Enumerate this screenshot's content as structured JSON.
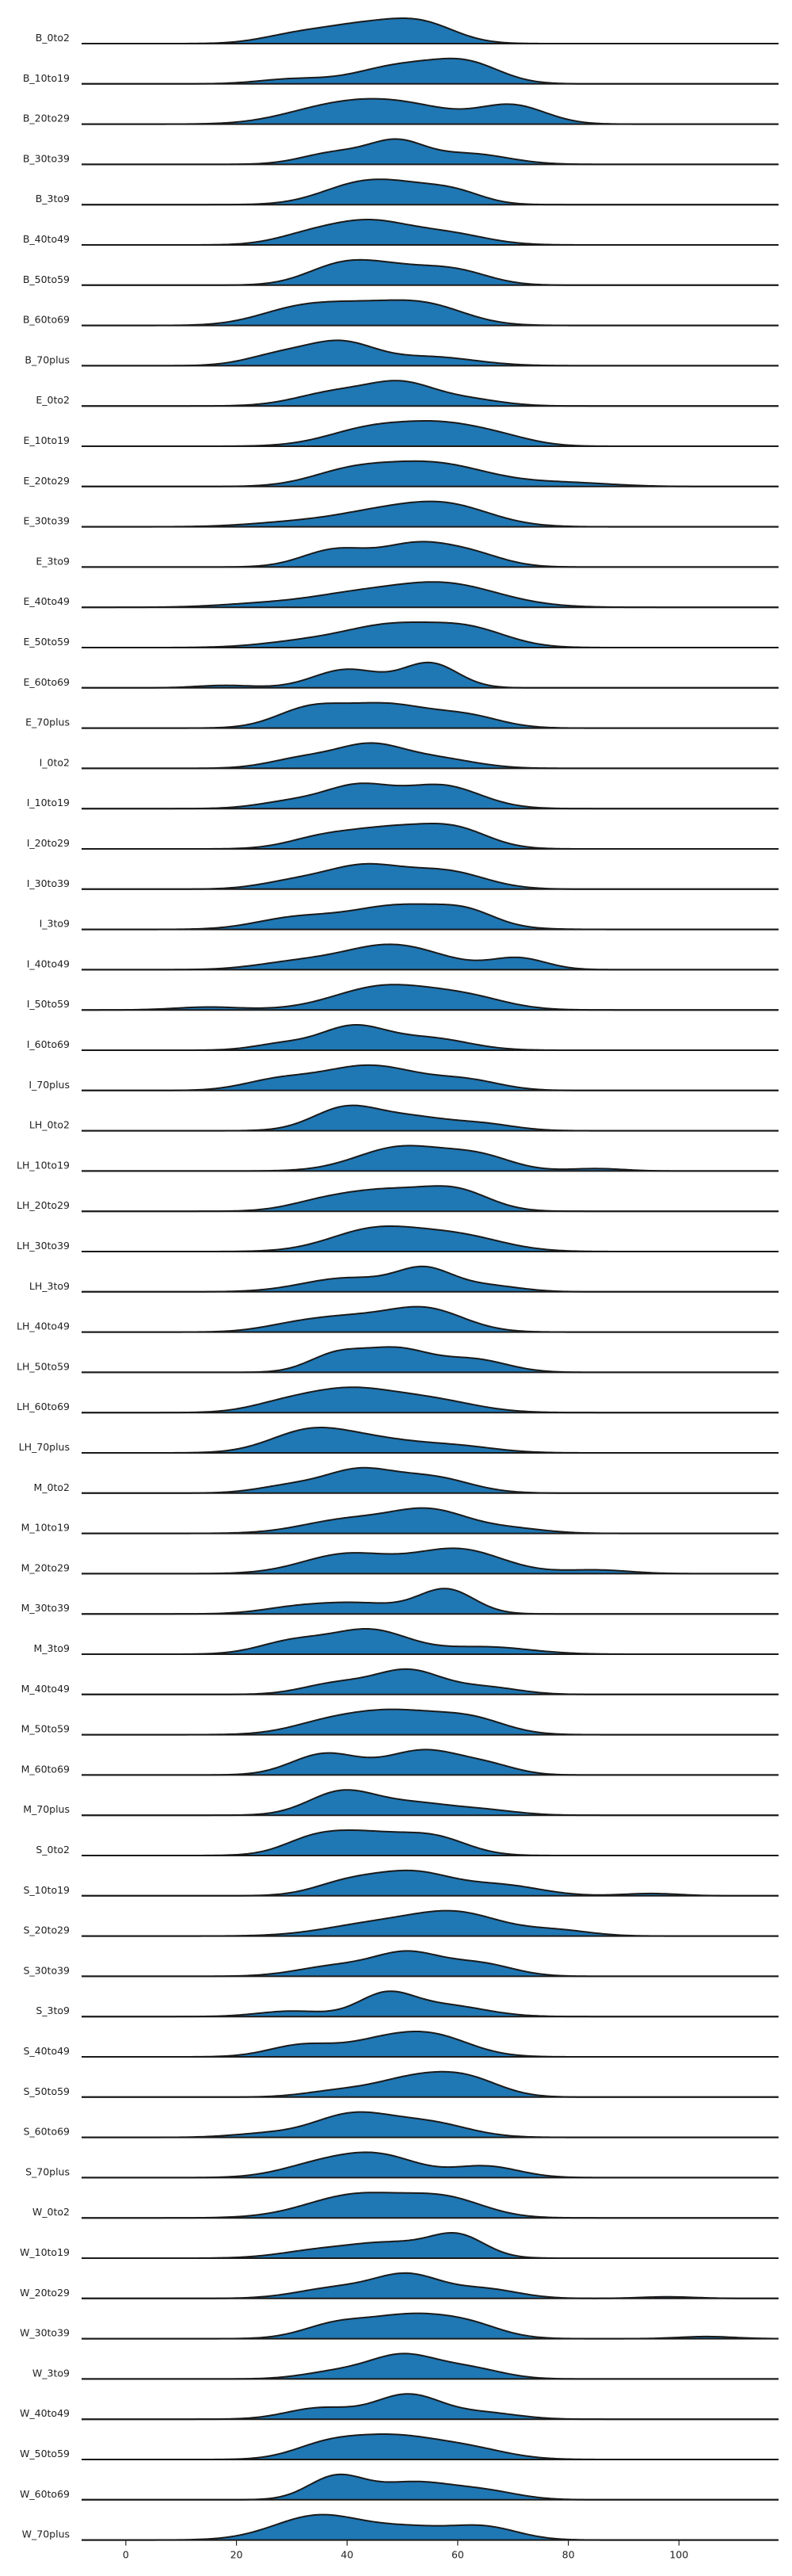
{
  "chart_data": {
    "type": "area",
    "subtype": "ridgeline",
    "title": "",
    "xlabel": "",
    "ylabel": "",
    "xlim": [
      -8,
      118
    ],
    "xticks": [
      0,
      20,
      40,
      60,
      80,
      100
    ],
    "grid": false,
    "legend": "none",
    "fill_color": "#1f77b4",
    "line_color": "#1a1a1a",
    "series": [
      {
        "name": "B_0to2",
        "peaks": [
          [
            43,
            1.0,
            8
          ],
          [
            54,
            0.85,
            6
          ],
          [
            30,
            0.35,
            6
          ]
        ]
      },
      {
        "name": "B_10to19",
        "peaks": [
          [
            50,
            1.0,
            8
          ],
          [
            62,
            0.95,
            6
          ],
          [
            30,
            0.25,
            6
          ]
        ]
      },
      {
        "name": "B_20to29",
        "peaks": [
          [
            48,
            0.8,
            10
          ],
          [
            70,
            0.65,
            6
          ],
          [
            35,
            0.35,
            8
          ]
        ]
      },
      {
        "name": "B_30to39",
        "peaks": [
          [
            49,
            1.0,
            5
          ],
          [
            38,
            0.55,
            6
          ],
          [
            62,
            0.5,
            7
          ]
        ]
      },
      {
        "name": "B_3to9",
        "peaks": [
          [
            42,
            1.0,
            7
          ],
          [
            52,
            0.75,
            7
          ],
          [
            60,
            0.45,
            5
          ]
        ]
      },
      {
        "name": "B_40to49",
        "peaks": [
          [
            44,
            1.0,
            7
          ],
          [
            33,
            0.4,
            6
          ],
          [
            58,
            0.5,
            7
          ]
        ]
      },
      {
        "name": "B_50to59",
        "peaks": [
          [
            47,
            1.0,
            8
          ],
          [
            38,
            0.7,
            6
          ],
          [
            60,
            0.65,
            6
          ]
        ]
      },
      {
        "name": "B_60to69",
        "peaks": [
          [
            42,
            0.85,
            9
          ],
          [
            55,
            0.7,
            7
          ],
          [
            30,
            0.5,
            7
          ]
        ]
      },
      {
        "name": "B_70plus",
        "peaks": [
          [
            39,
            1.0,
            6
          ],
          [
            28,
            0.5,
            6
          ],
          [
            55,
            0.4,
            8
          ]
        ]
      },
      {
        "name": "E_0to2",
        "peaks": [
          [
            50,
            1.0,
            6
          ],
          [
            38,
            0.65,
            7
          ],
          [
            62,
            0.3,
            6
          ]
        ]
      },
      {
        "name": "E_10to19",
        "peaks": [
          [
            45,
            0.9,
            8
          ],
          [
            58,
            0.85,
            7
          ],
          [
            68,
            0.35,
            6
          ]
        ]
      },
      {
        "name": "E_20to29",
        "peaks": [
          [
            55,
            1.0,
            10
          ],
          [
            40,
            0.5,
            7
          ],
          [
            80,
            0.15,
            8
          ]
        ]
      },
      {
        "name": "E_30to39",
        "peaks": [
          [
            58,
            1.0,
            8
          ],
          [
            45,
            0.6,
            8
          ],
          [
            30,
            0.2,
            8
          ]
        ]
      },
      {
        "name": "E_3to9",
        "peaks": [
          [
            38,
            0.85,
            6
          ],
          [
            52,
            1.0,
            6
          ],
          [
            62,
            0.65,
            6
          ]
        ]
      },
      {
        "name": "E_40to49",
        "peaks": [
          [
            57,
            1.0,
            10
          ],
          [
            40,
            0.4,
            8
          ],
          [
            25,
            0.15,
            8
          ]
        ]
      },
      {
        "name": "E_50to59",
        "peaks": [
          [
            48,
            1.0,
            8
          ],
          [
            62,
            0.85,
            7
          ],
          [
            33,
            0.3,
            8
          ]
        ]
      },
      {
        "name": "E_60to69",
        "peaks": [
          [
            55,
            1.0,
            5
          ],
          [
            40,
            0.75,
            6
          ],
          [
            18,
            0.1,
            5
          ]
        ]
      },
      {
        "name": "E_70plus",
        "peaks": [
          [
            47,
            1.0,
            8
          ],
          [
            33,
            0.75,
            6
          ],
          [
            62,
            0.45,
            6
          ]
        ]
      },
      {
        "name": "I_0to2",
        "peaks": [
          [
            44,
            1.0,
            6
          ],
          [
            32,
            0.45,
            6
          ],
          [
            56,
            0.45,
            7
          ]
        ]
      },
      {
        "name": "I_10to19",
        "peaks": [
          [
            42,
            0.95,
            6
          ],
          [
            57,
            1.0,
            7
          ],
          [
            30,
            0.3,
            6
          ]
        ]
      },
      {
        "name": "I_20to29",
        "peaks": [
          [
            48,
            1.0,
            8
          ],
          [
            60,
            0.8,
            6
          ],
          [
            35,
            0.45,
            6
          ]
        ]
      },
      {
        "name": "I_30to39",
        "peaks": [
          [
            43,
            1.0,
            7
          ],
          [
            58,
            0.75,
            7
          ],
          [
            30,
            0.3,
            6
          ]
        ]
      },
      {
        "name": "I_3to9",
        "peaks": [
          [
            50,
            1.0,
            10
          ],
          [
            30,
            0.4,
            7
          ],
          [
            62,
            0.4,
            5
          ]
        ]
      },
      {
        "name": "I_40to49",
        "peaks": [
          [
            48,
            1.0,
            9
          ],
          [
            71,
            0.45,
            5
          ],
          [
            30,
            0.25,
            7
          ]
        ]
      },
      {
        "name": "I_50to59",
        "peaks": [
          [
            47,
            1.0,
            9
          ],
          [
            15,
            0.12,
            6
          ],
          [
            62,
            0.45,
            7
          ]
        ]
      },
      {
        "name": "I_60to69",
        "peaks": [
          [
            41,
            1.0,
            6
          ],
          [
            55,
            0.5,
            7
          ],
          [
            28,
            0.25,
            5
          ]
        ]
      },
      {
        "name": "I_70plus",
        "peaks": [
          [
            44,
            1.0,
            9
          ],
          [
            27,
            0.35,
            6
          ],
          [
            62,
            0.35,
            6
          ]
        ]
      },
      {
        "name": "LH_0to2",
        "peaks": [
          [
            40,
            1.0,
            6
          ],
          [
            52,
            0.5,
            6
          ],
          [
            64,
            0.3,
            6
          ]
        ]
      },
      {
        "name": "LH_10to19",
        "peaks": [
          [
            50,
            1.0,
            8
          ],
          [
            64,
            0.55,
            6
          ],
          [
            85,
            0.1,
            5
          ]
        ]
      },
      {
        "name": "LH_20to29",
        "peaks": [
          [
            47,
            1.0,
            8
          ],
          [
            60,
            0.9,
            6
          ],
          [
            35,
            0.35,
            6
          ]
        ]
      },
      {
        "name": "LH_30to39",
        "peaks": [
          [
            45,
            1.0,
            8
          ],
          [
            60,
            0.7,
            8
          ]
        ]
      },
      {
        "name": "LH_3to9",
        "peaks": [
          [
            54,
            1.0,
            5
          ],
          [
            40,
            0.65,
            8
          ],
          [
            65,
            0.3,
            6
          ]
        ]
      },
      {
        "name": "LH_40to49",
        "peaks": [
          [
            54,
            1.0,
            7
          ],
          [
            40,
            0.55,
            7
          ],
          [
            30,
            0.25,
            6
          ]
        ]
      },
      {
        "name": "LH_50to59",
        "peaks": [
          [
            49,
            1.0,
            6
          ],
          [
            38,
            0.75,
            5
          ],
          [
            63,
            0.55,
            6
          ]
        ]
      },
      {
        "name": "LH_60to69",
        "peaks": [
          [
            40,
            1.0,
            8
          ],
          [
            55,
            0.55,
            8
          ],
          [
            28,
            0.3,
            6
          ]
        ]
      },
      {
        "name": "LH_70plus",
        "peaks": [
          [
            33,
            1.0,
            7
          ],
          [
            45,
            0.6,
            8
          ],
          [
            60,
            0.3,
            7
          ]
        ]
      },
      {
        "name": "M_0to2",
        "peaks": [
          [
            42,
            1.0,
            6
          ],
          [
            55,
            0.75,
            7
          ],
          [
            30,
            0.35,
            6
          ]
        ]
      },
      {
        "name": "M_10to19",
        "peaks": [
          [
            55,
            1.0,
            7
          ],
          [
            40,
            0.6,
            8
          ],
          [
            70,
            0.2,
            6
          ]
        ]
      },
      {
        "name": "M_20to29",
        "peaks": [
          [
            60,
            1.0,
            8
          ],
          [
            40,
            0.8,
            8
          ],
          [
            85,
            0.15,
            6
          ]
        ]
      },
      {
        "name": "M_30to39",
        "peaks": [
          [
            58,
            1.0,
            5
          ],
          [
            42,
            0.45,
            8
          ],
          [
            30,
            0.2,
            6
          ]
        ]
      },
      {
        "name": "M_3to9",
        "peaks": [
          [
            44,
            1.0,
            7
          ],
          [
            30,
            0.5,
            6
          ],
          [
            65,
            0.3,
            8
          ]
        ]
      },
      {
        "name": "M_40to49",
        "peaks": [
          [
            51,
            1.0,
            6
          ],
          [
            38,
            0.45,
            6
          ],
          [
            65,
            0.3,
            6
          ]
        ]
      },
      {
        "name": "M_50to59",
        "peaks": [
          [
            48,
            1.0,
            10
          ],
          [
            63,
            0.45,
            6
          ],
          [
            35,
            0.2,
            6
          ]
        ]
      },
      {
        "name": "M_60to69",
        "peaks": [
          [
            36,
            0.85,
            6
          ],
          [
            54,
            1.0,
            7
          ],
          [
            66,
            0.3,
            5
          ]
        ]
      },
      {
        "name": "M_70plus",
        "peaks": [
          [
            39,
            1.0,
            6
          ],
          [
            52,
            0.5,
            7
          ],
          [
            65,
            0.2,
            6
          ]
        ]
      },
      {
        "name": "S_0to2",
        "peaks": [
          [
            42,
            1.0,
            8
          ],
          [
            56,
            0.7,
            6
          ],
          [
            33,
            0.35,
            5
          ]
        ]
      },
      {
        "name": "S_10to19",
        "peaks": [
          [
            52,
            1.0,
            7
          ],
          [
            40,
            0.55,
            6
          ],
          [
            68,
            0.45,
            7
          ],
          [
            95,
            0.1,
            5
          ]
        ]
      },
      {
        "name": "S_20to29",
        "peaks": [
          [
            60,
            1.0,
            8
          ],
          [
            45,
            0.55,
            9
          ],
          [
            78,
            0.25,
            6
          ]
        ]
      },
      {
        "name": "S_30to39",
        "peaks": [
          [
            51,
            1.0,
            6
          ],
          [
            38,
            0.45,
            7
          ],
          [
            64,
            0.55,
            6
          ]
        ]
      },
      {
        "name": "S_3to9",
        "peaks": [
          [
            47,
            1.0,
            5
          ],
          [
            58,
            0.5,
            7
          ],
          [
            30,
            0.25,
            6
          ]
        ]
      },
      {
        "name": "S_40to49",
        "peaks": [
          [
            55,
            1.0,
            7
          ],
          [
            32,
            0.55,
            6
          ],
          [
            45,
            0.5,
            6
          ]
        ]
      },
      {
        "name": "S_50to59",
        "peaks": [
          [
            52,
            1.0,
            7
          ],
          [
            62,
            0.85,
            6
          ],
          [
            38,
            0.3,
            6
          ]
        ]
      },
      {
        "name": "S_60to69",
        "peaks": [
          [
            41,
            1.0,
            7
          ],
          [
            55,
            0.6,
            7
          ],
          [
            25,
            0.15,
            6
          ]
        ]
      },
      {
        "name": "S_70plus",
        "peaks": [
          [
            46,
            1.0,
            7
          ],
          [
            35,
            0.6,
            7
          ],
          [
            65,
            0.55,
            6
          ]
        ]
      },
      {
        "name": "W_0to2",
        "peaks": [
          [
            42,
            1.0,
            9
          ],
          [
            58,
            0.75,
            7
          ]
        ]
      },
      {
        "name": "W_10to19",
        "peaks": [
          [
            60,
            1.0,
            5
          ],
          [
            48,
            0.65,
            7
          ],
          [
            35,
            0.35,
            7
          ]
        ]
      },
      {
        "name": "W_20to29",
        "peaks": [
          [
            51,
            1.0,
            6
          ],
          [
            38,
            0.45,
            7
          ],
          [
            65,
            0.4,
            6
          ],
          [
            98,
            0.07,
            5
          ]
        ]
      },
      {
        "name": "W_30to39",
        "peaks": [
          [
            51,
            1.0,
            7
          ],
          [
            38,
            0.65,
            6
          ],
          [
            62,
            0.6,
            6
          ],
          [
            105,
            0.1,
            5
          ]
        ]
      },
      {
        "name": "W_3to9",
        "peaks": [
          [
            50,
            1.0,
            6
          ],
          [
            62,
            0.45,
            6
          ],
          [
            38,
            0.3,
            6
          ]
        ]
      },
      {
        "name": "W_40to49",
        "peaks": [
          [
            51,
            1.0,
            6
          ],
          [
            35,
            0.45,
            6
          ],
          [
            65,
            0.25,
            6
          ]
        ]
      },
      {
        "name": "W_50to59",
        "peaks": [
          [
            48,
            1.0,
            8
          ],
          [
            36,
            0.55,
            6
          ],
          [
            62,
            0.45,
            7
          ]
        ]
      },
      {
        "name": "W_60to69",
        "peaks": [
          [
            38,
            1.0,
            5
          ],
          [
            52,
            0.75,
            7
          ],
          [
            65,
            0.35,
            6
          ]
        ]
      },
      {
        "name": "W_70plus",
        "peaks": [
          [
            35,
            1.0,
            8
          ],
          [
            52,
            0.45,
            7
          ],
          [
            65,
            0.5,
            6
          ]
        ]
      }
    ]
  }
}
